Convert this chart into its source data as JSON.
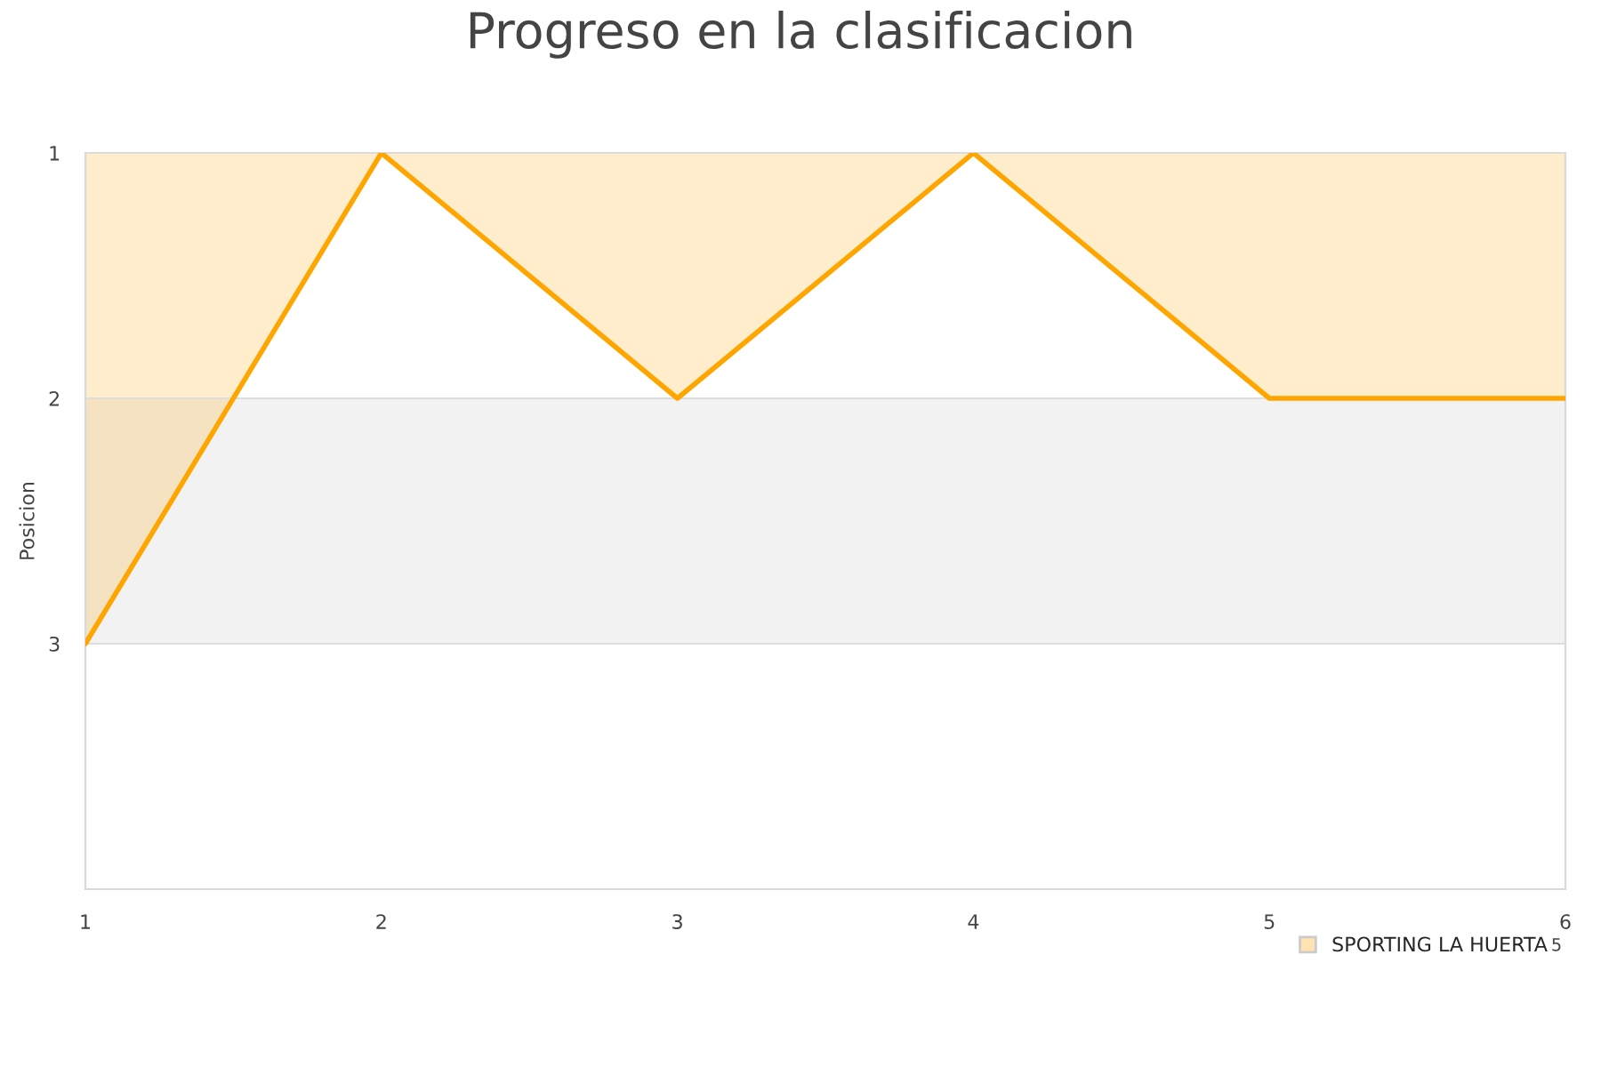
{
  "chart_data": {
    "type": "area",
    "title": "Progreso en la clasificacion",
    "ylabel": "Posicion",
    "x": [
      1,
      2,
      3,
      4,
      5,
      6
    ],
    "series": [
      {
        "name": "SPORTING LA HUERTA",
        "color": "#ffa500",
        "values": [
          3,
          1,
          2,
          1,
          2,
          2
        ]
      }
    ],
    "xlim": [
      1,
      6
    ],
    "xticks": [
      1,
      2,
      3,
      4,
      5,
      6
    ],
    "ylim": [
      4,
      1
    ],
    "yticks": [
      1,
      2,
      3
    ],
    "bands": [
      {
        "axis": "y",
        "from": 2,
        "to": 3,
        "color": "#f2f2f2"
      }
    ],
    "grid": "y",
    "legend": "bottom right",
    "annotations": [
      "5"
    ]
  }
}
